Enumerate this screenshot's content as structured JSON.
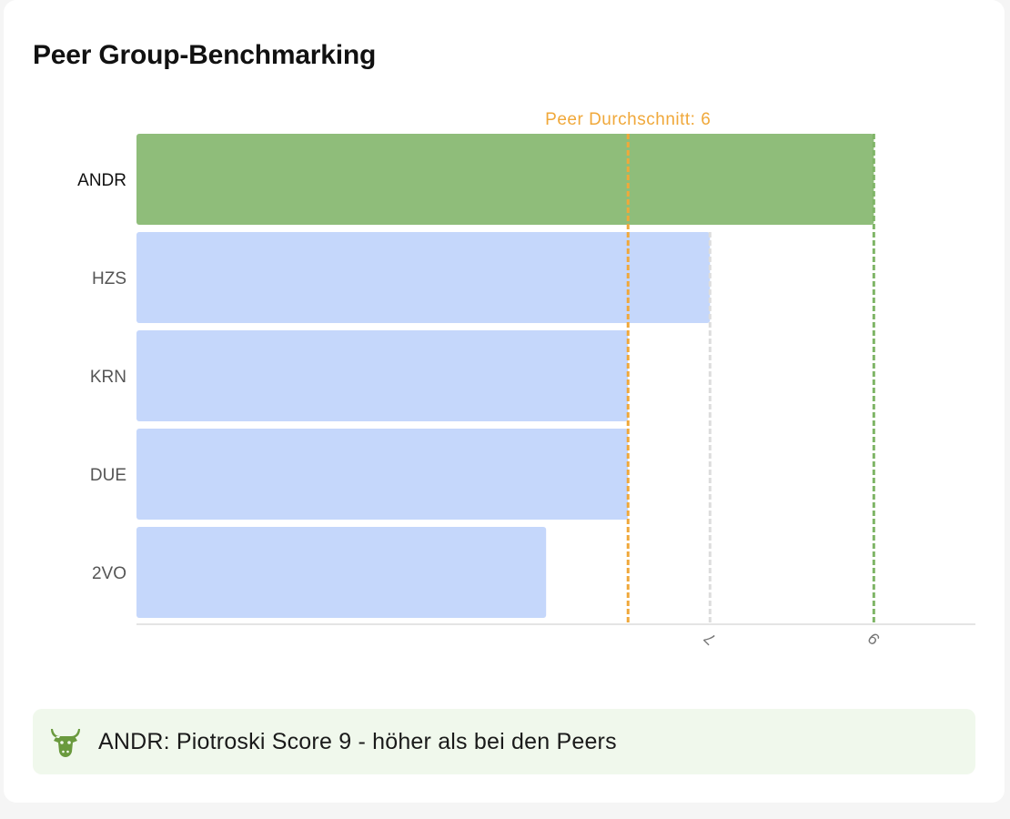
{
  "title": "Peer Group-Benchmarking",
  "colors": {
    "highlight_bar": "#8fbd7a",
    "peer_bar": "#c5d7fb",
    "peer_average_line": "#f0a83a",
    "highlight_line": "#7fb567",
    "reference_line": "#dddddd",
    "axis": "#dcdcdc",
    "callout_background": "#f0f8ec",
    "callout_icon": "#6a9a3e"
  },
  "chart_data": {
    "type": "bar",
    "orientation": "horizontal",
    "categories": [
      "ANDR",
      "HZS",
      "KRN",
      "DUE",
      "2VO"
    ],
    "values": [
      9,
      7,
      6,
      6,
      5
    ],
    "highlighted_category": "ANDR",
    "xlim": [
      0,
      9.6
    ],
    "xticks": [
      7,
      9
    ],
    "reference_lines": [
      {
        "value": 6,
        "label": "Peer Durchschnitt: 6",
        "style": "peer-average"
      },
      {
        "value": 7,
        "label": "",
        "style": "reference"
      },
      {
        "value": 9,
        "label": "",
        "style": "highlight"
      }
    ],
    "grid": false,
    "legend": "none"
  },
  "callout": {
    "icon": "bull-icon",
    "text": "ANDR: Piotroski Score 9 - höher als bei den Peers"
  }
}
